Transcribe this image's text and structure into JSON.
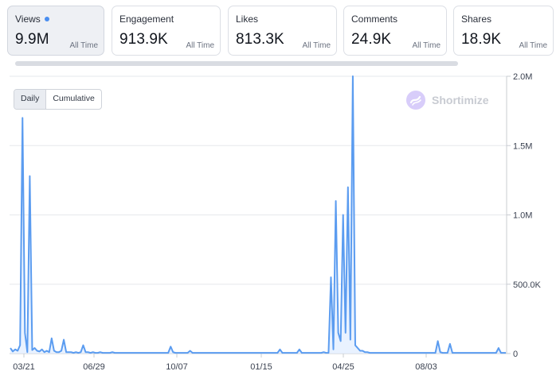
{
  "metrics": [
    {
      "label": "Views",
      "value": "9.9M",
      "range": "All Time",
      "active": true
    },
    {
      "label": "Engagement",
      "value": "913.9K",
      "range": "All Time",
      "active": false
    },
    {
      "label": "Likes",
      "value": "813.3K",
      "range": "All Time",
      "active": false
    },
    {
      "label": "Comments",
      "value": "24.9K",
      "range": "All Time",
      "active": false
    },
    {
      "label": "Shares",
      "value": "18.9K",
      "range": "All Time",
      "active": false
    }
  ],
  "toggle": {
    "daily": "Daily",
    "cumulative": "Cumulative",
    "selected": "Daily"
  },
  "brand": {
    "name": "Shortimize"
  },
  "colors": {
    "line": "#5b9cf0",
    "fill": "#e3efff",
    "accent": "#4a8ef0"
  },
  "chart_data": {
    "type": "line",
    "title": "",
    "xlabel": "",
    "ylabel": "",
    "ylim": [
      0,
      2000000
    ],
    "yticks": [
      "2.0M",
      "1.5M",
      "1.0M",
      "500.0K",
      "0"
    ],
    "ytick_values": [
      2000000,
      1500000,
      1000000,
      500000,
      0
    ],
    "xticks": [
      "03/21",
      "06/29",
      "10/07",
      "01/15",
      "04/25",
      "08/03"
    ],
    "grid": true,
    "series": [
      {
        "values": [
          40000,
          15000,
          30000,
          20000,
          60000,
          1700000,
          150000,
          10000,
          1280000,
          25000,
          40000,
          20000,
          15000,
          30000,
          10000,
          20000,
          10000,
          110000,
          20000,
          10000,
          10000,
          20000,
          100000,
          10000,
          10000,
          10000,
          5000,
          10000,
          5000,
          10000,
          60000,
          10000,
          10000,
          5000,
          10000,
          5000,
          5000,
          10000,
          5000,
          5000,
          5000,
          5000,
          10000,
          5000,
          5000,
          5000,
          5000,
          5000,
          5000,
          5000,
          5000,
          5000,
          5000,
          5000,
          5000,
          5000,
          5000,
          5000,
          5000,
          5000,
          5000,
          5000,
          5000,
          5000,
          5000,
          5000,
          50000,
          10000,
          5000,
          5000,
          5000,
          5000,
          5000,
          5000,
          20000,
          5000,
          5000,
          5000,
          5000,
          5000,
          5000,
          5000,
          5000,
          5000,
          5000,
          5000,
          5000,
          5000,
          5000,
          5000,
          5000,
          5000,
          5000,
          5000,
          5000,
          5000,
          5000,
          5000,
          5000,
          5000,
          5000,
          5000,
          5000,
          5000,
          5000,
          5000,
          5000,
          5000,
          5000,
          5000,
          5000,
          30000,
          5000,
          5000,
          5000,
          5000,
          5000,
          5000,
          5000,
          30000,
          5000,
          5000,
          5000,
          5000,
          5000,
          5000,
          5000,
          5000,
          5000,
          10000,
          5000,
          5000,
          550000,
          30000,
          1100000,
          150000,
          90000,
          1000000,
          150000,
          1200000,
          100000,
          2000000,
          60000,
          40000,
          20000,
          20000,
          10000,
          10000,
          5000,
          5000,
          5000,
          5000,
          5000,
          5000,
          5000,
          5000,
          5000,
          5000,
          5000,
          5000,
          5000,
          5000,
          5000,
          5000,
          5000,
          5000,
          5000,
          5000,
          5000,
          5000,
          5000,
          5000,
          5000,
          5000,
          5000,
          5000,
          90000,
          10000,
          5000,
          5000,
          5000,
          70000,
          5000,
          5000,
          5000,
          5000,
          5000,
          5000,
          5000,
          5000,
          5000,
          5000,
          5000,
          5000,
          5000,
          5000,
          5000,
          5000,
          5000,
          5000,
          5000,
          40000,
          5000,
          5000,
          5000
        ]
      }
    ]
  }
}
